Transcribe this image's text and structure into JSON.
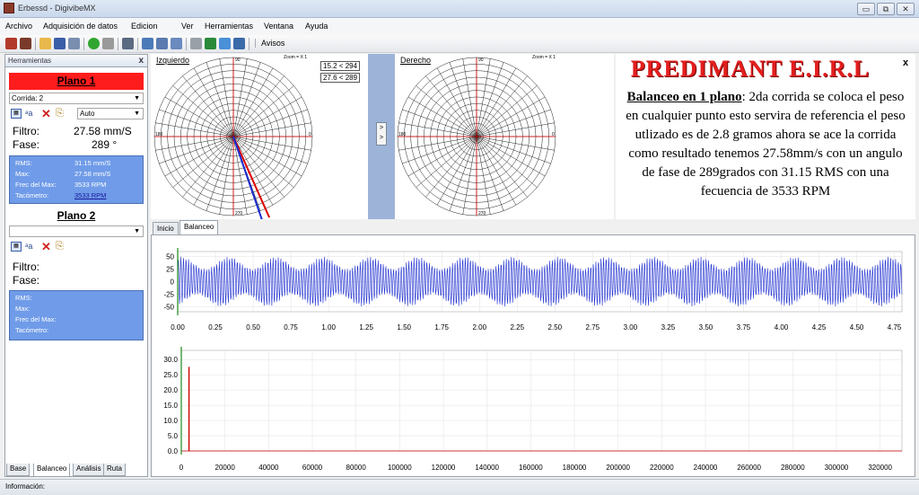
{
  "window": {
    "title": "Erbessd - DigivibeMX",
    "btn_min": "▭",
    "btn_max": "⧉",
    "btn_close": "✕"
  },
  "menu": [
    "Archivo",
    "Adquisición de datos",
    "Edicion",
    "Ver",
    "Herramientas",
    "Ventana",
    "Ayuda"
  ],
  "toolbar": {
    "avisos": "Avisos"
  },
  "left_panel": {
    "header": "Herramientas",
    "close": "x",
    "plano1": {
      "title": "Plano 1",
      "corrida": "Corrida: 2",
      "auto": "Auto",
      "filtro_label": "Filtro:",
      "filtro_value": "27.58 mm/S",
      "fase_label": "Fase:",
      "fase_value": "289 °",
      "rms_label": "RMS:",
      "rms_value": "31.15 mm/S",
      "max_label": "Max:",
      "max_value": "27.58 mm/S",
      "frec_label": "Frec del Max:",
      "frec_value": "3533 RPM",
      "taco_label": "Tacómetro:",
      "taco_value": "3533 RPM"
    },
    "plano2": {
      "title": "Plano 2",
      "filtro_label": "Filtro:",
      "fase_label": "Fase:",
      "rms_label": "RMS:",
      "max_label": "Max:",
      "frec_label": "Frec del Max:",
      "taco_label": "Tacómetro:"
    }
  },
  "polar": {
    "left_label": "Izquierdo",
    "right_label": "Derecho",
    "zoom": "Zoom = X 1",
    "angle_90": "90",
    "angle_270": "270",
    "angle_180": "180",
    "angle_0": "0",
    "readout1": "15.2 < 294",
    "readout2": "27.6 < 289",
    "arrow_up": ">",
    "arrow_dn": ">"
  },
  "note": {
    "title": "PREDIMANT E.I.R.L",
    "close": "x",
    "heading": "Balanceo en 1 plano",
    "body": ": 2da corrida se coloca el peso en cualquier punto esto servira de referencia el peso utlizado es de 2.8 gramos ahora se ace la corrida como resultado tenemos 27.58mm/s con un angulo de fase de 289grados con 31.15 RMS con una fecuencia de 3533 RPM"
  },
  "tabs": [
    "Inicio",
    "Balanceo"
  ],
  "bottom_tabs": [
    "Base",
    "Balanceo",
    "Análisis",
    "Ruta"
  ],
  "status": "Información:",
  "chart_data": [
    {
      "type": "line",
      "series": [
        {
          "values": "oscillating vibration waveform"
        }
      ],
      "x_ticks": [
        "0.00",
        "0.25",
        "0.50",
        "0.75",
        "1.00",
        "1.25",
        "1.50",
        "1.75",
        "2.00",
        "2.25",
        "2.50",
        "2.75",
        "3.00",
        "3.25",
        "3.50",
        "3.75",
        "4.00",
        "4.25",
        "4.50",
        "4.75"
      ],
      "y_ticks": [
        "50",
        "25",
        "0",
        "-25",
        "-50"
      ],
      "xlim": [
        0,
        4.8
      ],
      "ylim": [
        -60,
        60
      ],
      "color": "#1f2fd0"
    },
    {
      "type": "line",
      "x_ticks": [
        "0",
        "20000",
        "40000",
        "60000",
        "80000",
        "100000",
        "120000",
        "140000",
        "160000",
        "180000",
        "200000",
        "220000",
        "240000",
        "260000",
        "280000",
        "300000",
        "320000"
      ],
      "y_ticks": [
        "30.0",
        "25.0",
        "20.0",
        "15.0",
        "10.0",
        "5.0",
        "0.0"
      ],
      "xlim": [
        0,
        330000
      ],
      "ylim": [
        0,
        33
      ],
      "peak": {
        "x": 3533,
        "y": 27.58
      },
      "color": "#d00000"
    }
  ]
}
